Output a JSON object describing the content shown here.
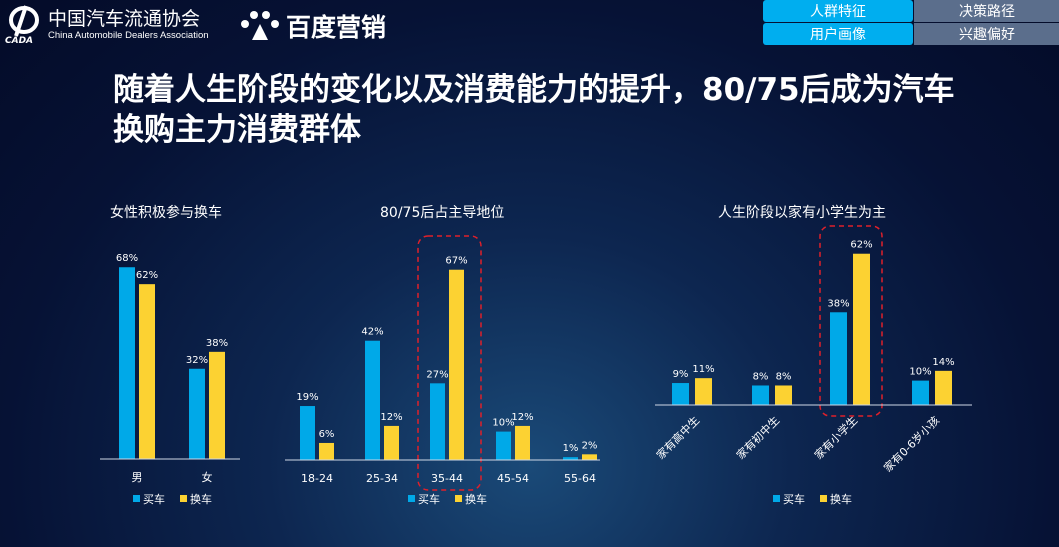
{
  "header": {
    "org_name_cn": "中国汽车流通协会",
    "org_name_en": "China Automobile Dealers Association",
    "org_logo_text": "CADA",
    "partner_name": "百度营销",
    "nav": [
      {
        "label": "人群特征",
        "active": true
      },
      {
        "label": "决策路径",
        "active": false
      },
      {
        "label": "用户画像",
        "active": true
      },
      {
        "label": "兴趣偏好",
        "active": false
      }
    ]
  },
  "title": "随着人生阶段的变化以及消费能力的提升，80/75后成为汽车换购主力消费群体",
  "colors": {
    "buy": "#00a9e8",
    "replace": "#fcd232",
    "highlight": "#e0202a"
  },
  "chart_data": [
    {
      "type": "bar",
      "title": "女性积极参与换车",
      "categories": [
        "男",
        "女"
      ],
      "series": [
        {
          "name": "买车",
          "values": [
            68,
            32
          ]
        },
        {
          "name": "换车",
          "values": [
            62,
            38
          ]
        }
      ],
      "unit": "%",
      "ylim": [
        0,
        70
      ],
      "legend": "bottom",
      "highlight": null
    },
    {
      "type": "bar",
      "title": "80/75后占主导地位",
      "categories": [
        "18-24",
        "25-34",
        "35-44",
        "45-54",
        "55-64"
      ],
      "series": [
        {
          "name": "买车",
          "values": [
            19,
            42,
            27,
            10,
            1
          ]
        },
        {
          "name": "换车",
          "values": [
            6,
            12,
            67,
            12,
            2
          ]
        }
      ],
      "unit": "%",
      "ylim": [
        0,
        70
      ],
      "legend": "bottom",
      "highlight": "35-44"
    },
    {
      "type": "bar",
      "title": "人生阶段以家有小学生为主",
      "categories": [
        "家有高中生",
        "家有初中生",
        "家有小学生",
        "家有0-6岁小孩"
      ],
      "series": [
        {
          "name": "买车",
          "values": [
            9,
            8,
            38,
            10
          ]
        },
        {
          "name": "换车",
          "values": [
            11,
            8,
            62,
            14
          ]
        }
      ],
      "unit": "%",
      "ylim": [
        0,
        65
      ],
      "legend": "bottom",
      "highlight": "家有小学生"
    }
  ]
}
